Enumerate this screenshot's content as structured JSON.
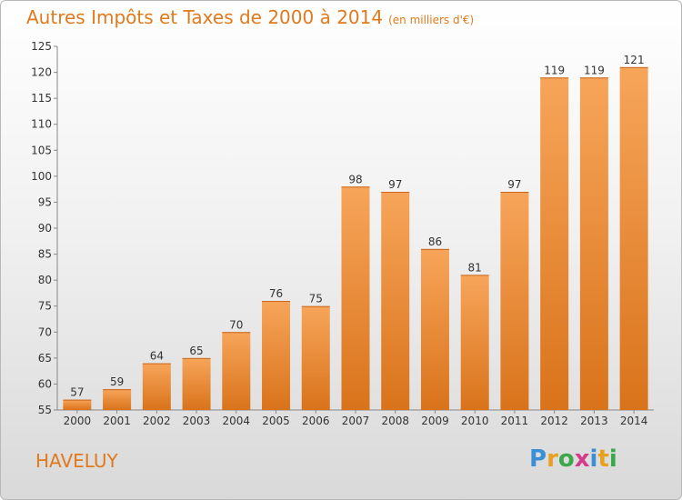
{
  "header": {
    "title": "Autres Impôts et Taxes de 2000 à 2014",
    "unit": "(en milliers d'€)"
  },
  "footer": {
    "commune": "HAVELUY",
    "logo": [
      "P",
      "r",
      "o",
      "x",
      "i",
      "t",
      "i"
    ]
  },
  "colors": {
    "title": "#e07a1c",
    "bar_light": "#f7a55a",
    "bar_dark": "#d9731b"
  },
  "chart_data": {
    "type": "bar",
    "categories": [
      "2000",
      "2001",
      "2002",
      "2003",
      "2004",
      "2005",
      "2006",
      "2007",
      "2008",
      "2009",
      "2010",
      "2011",
      "2012",
      "2013",
      "2014"
    ],
    "values": [
      57,
      59,
      64,
      65,
      70,
      76,
      75,
      98,
      97,
      86,
      81,
      97,
      119,
      119,
      121
    ],
    "ylim": [
      55,
      125
    ],
    "yticks": [
      55,
      60,
      65,
      70,
      75,
      80,
      85,
      90,
      95,
      100,
      105,
      110,
      115,
      120,
      125
    ],
    "grid": false,
    "legend": "none"
  }
}
